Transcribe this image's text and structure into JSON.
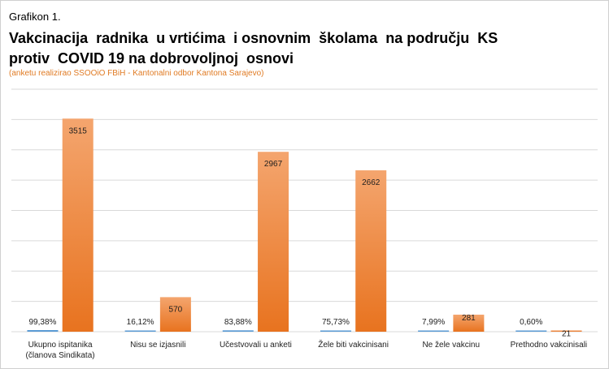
{
  "header": {
    "kicker": "Grafikon 1.",
    "title_line1": "Vakcinacija  radnika  u vrtićima  i osnovnim  školama  na području  KS",
    "title_line2": "protiv  COVID 19 na dobrovoljnoj  osnovi",
    "note": "(anketu realizirao SSOOiO FBiH - Kantonalni odbor Kantona Sarajevo)"
  },
  "colors": {
    "orange_top": "#f4a56e",
    "orange_bottom": "#e8731f",
    "blue": "#5b9bd5",
    "grid": "#d9d9d9"
  },
  "chart_data": {
    "type": "bar",
    "title": "Vakcinacija  radnika  u vrtićima  i osnovnim  školama  na području  KS protiv  COVID 19 na dobrovoljnoj  osnovi",
    "categories": [
      [
        "Ukupno ispitanika",
        "(članova Sindikata)"
      ],
      [
        "Nisu se izjasnili"
      ],
      [
        "Učestvovali u anketi"
      ],
      [
        "Žele biti vakcinisani"
      ],
      [
        "Ne žele vakcinu"
      ],
      [
        "Prethodno vakcinisali"
      ]
    ],
    "series": [
      {
        "percent_labels": [
          "99,38%",
          "16,12%",
          "83,88%",
          "75,73%",
          "7,99%",
          "0,60%"
        ],
        "values": [
          99.38,
          16.12,
          83.88,
          75.73,
          7.99,
          0.6
        ]
      },
      {
        "values": [
          3515,
          570,
          2967,
          2662,
          281,
          21
        ]
      }
    ],
    "ylim": [
      0,
      4000
    ],
    "grid": true,
    "legend": "none"
  }
}
